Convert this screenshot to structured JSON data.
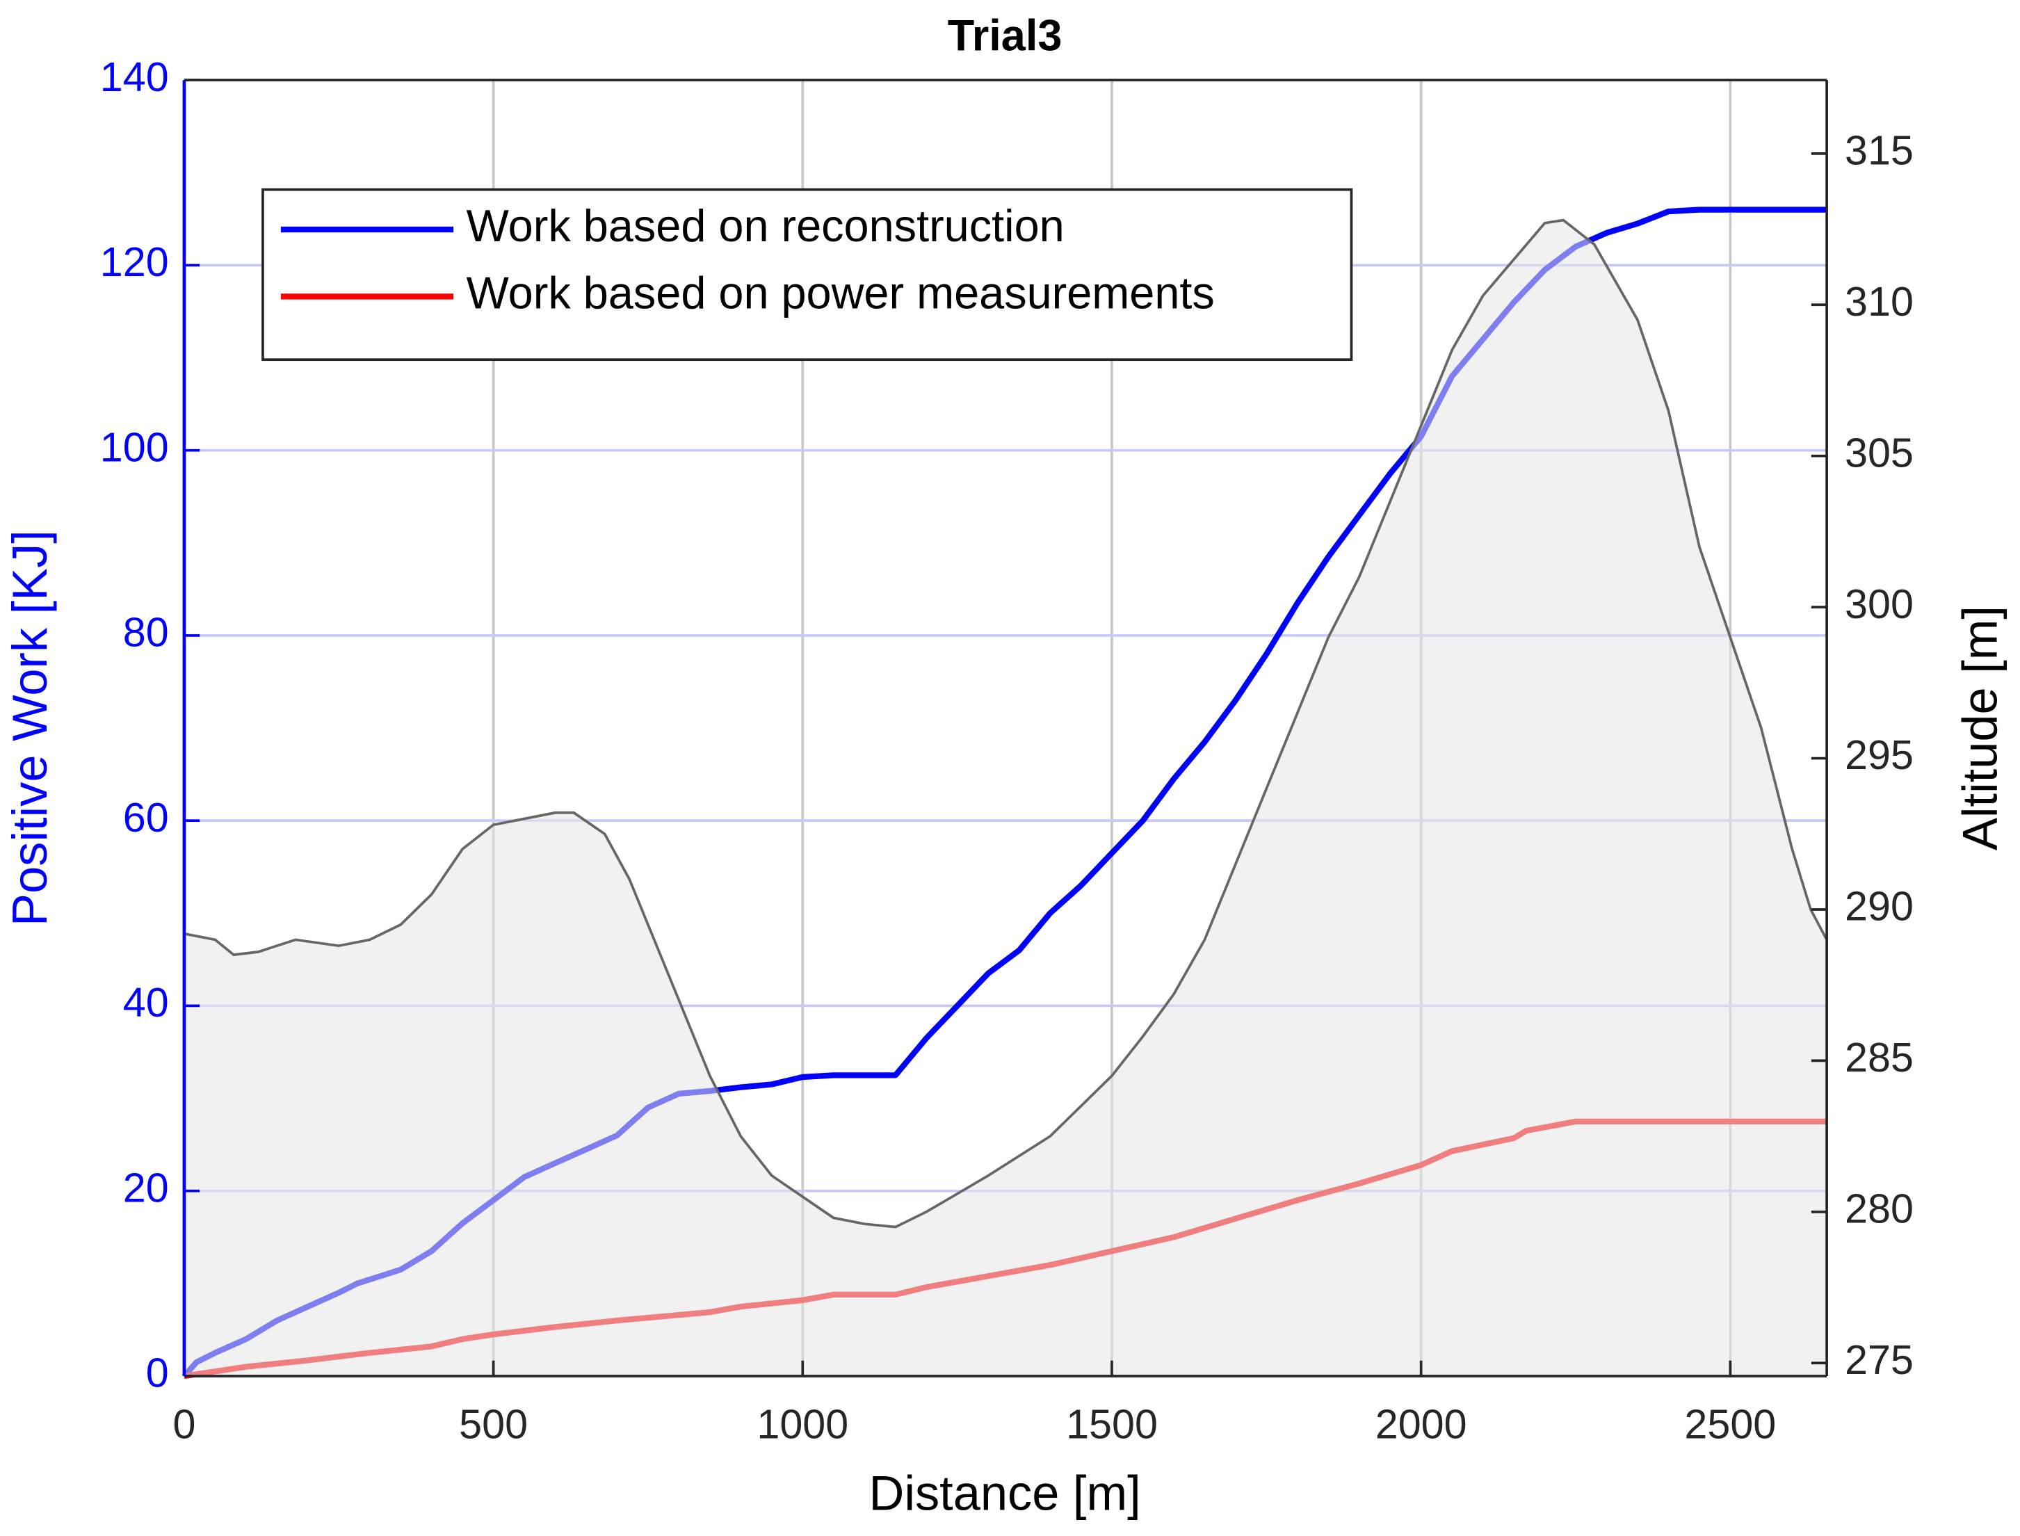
{
  "chart_data": {
    "type": "line",
    "title": "Trial3",
    "x_label": "Distance [m]",
    "y_label": "Positive Work [KJ]",
    "y2_label": "Altitude [m]",
    "xlim": [
      0,
      2656
    ],
    "xticks": [
      0,
      500,
      1000,
      1500,
      2000,
      2500
    ],
    "ylim": [
      0,
      140
    ],
    "yticks": [
      0,
      20,
      40,
      60,
      80,
      100,
      120,
      140
    ],
    "y2lim": [
      274.57,
      317.43
    ],
    "y2ticks": [
      275,
      280,
      285,
      290,
      295,
      300,
      305,
      310,
      315
    ],
    "grid": true,
    "legend": "upper-left",
    "y_axis_color": "#0000ff",
    "series": [
      {
        "name": "Work based on reconstruction",
        "color": "#0000ff",
        "x": [
          0,
          20,
          50,
          100,
          150,
          200,
          250,
          280,
          350,
          400,
          450,
          500,
          550,
          600,
          650,
          700,
          750,
          800,
          850,
          900,
          950,
          1000,
          1050,
          1150,
          1200,
          1250,
          1300,
          1350,
          1400,
          1450,
          1500,
          1550,
          1600,
          1650,
          1700,
          1750,
          1800,
          1850,
          1900,
          1950,
          2000,
          2050,
          2100,
          2150,
          2200,
          2250,
          2300,
          2350,
          2400,
          2450,
          2656
        ],
        "values": [
          0,
          1.5,
          2.5,
          4,
          6,
          7.5,
          9,
          10,
          11.5,
          13.5,
          16.5,
          19,
          21.5,
          23,
          24.5,
          26,
          29,
          30.5,
          30.8,
          31.2,
          31.5,
          32.3,
          32.5,
          32.5,
          36.5,
          40,
          43.5,
          46,
          50,
          53,
          56.5,
          60,
          64.5,
          68.5,
          73,
          78,
          83.5,
          88.5,
          93,
          97.5,
          101.5,
          108,
          112,
          116,
          119.5,
          122,
          123.5,
          124.5,
          125.8,
          126,
          126
        ]
      },
      {
        "name": "Work based on power measurements",
        "color": "#ff0000",
        "x": [
          0,
          100,
          200,
          300,
          400,
          450,
          500,
          600,
          700,
          800,
          850,
          900,
          1000,
          1050,
          1150,
          1200,
          1300,
          1400,
          1500,
          1600,
          1700,
          1800,
          1900,
          2000,
          2050,
          2150,
          2170,
          2250,
          2656
        ],
        "values": [
          0,
          1,
          1.7,
          2.5,
          3.2,
          4,
          4.5,
          5.3,
          6,
          6.6,
          6.9,
          7.5,
          8.2,
          8.8,
          8.8,
          9.6,
          10.8,
          12,
          13.5,
          15,
          17,
          19,
          20.8,
          22.8,
          24.3,
          25.7,
          26.5,
          27.5,
          27.5
        ]
      },
      {
        "type": "area",
        "axis": "y2",
        "color": "#666666",
        "x": [
          0,
          50,
          80,
          120,
          150,
          180,
          250,
          300,
          350,
          400,
          450,
          500,
          550,
          600,
          630,
          680,
          720,
          760,
          800,
          850,
          900,
          950,
          1000,
          1050,
          1100,
          1150,
          1200,
          1250,
          1300,
          1400,
          1450,
          1500,
          1550,
          1600,
          1650,
          1700,
          1750,
          1800,
          1850,
          1900,
          1950,
          2000,
          2050,
          2100,
          2150,
          2200,
          2230,
          2280,
          2350,
          2400,
          2450,
          2500,
          2550,
          2600,
          2630,
          2656
        ],
        "values": [
          289.2,
          289,
          288.5,
          288.6,
          288.8,
          289,
          288.8,
          289,
          289.5,
          290.5,
          292,
          292.8,
          293,
          293.2,
          293.2,
          292.5,
          291,
          289,
          287,
          284.5,
          282.5,
          281.2,
          280.5,
          279.8,
          279.6,
          279.5,
          280,
          280.6,
          281.2,
          282.5,
          283.5,
          284.5,
          285.8,
          287.2,
          289,
          291.5,
          294,
          296.5,
          299,
          301,
          303.5,
          306,
          308.5,
          310.3,
          311.5,
          312.7,
          312.8,
          312,
          309.5,
          306.5,
          302,
          299,
          296,
          292,
          290,
          289
        ]
      }
    ]
  }
}
